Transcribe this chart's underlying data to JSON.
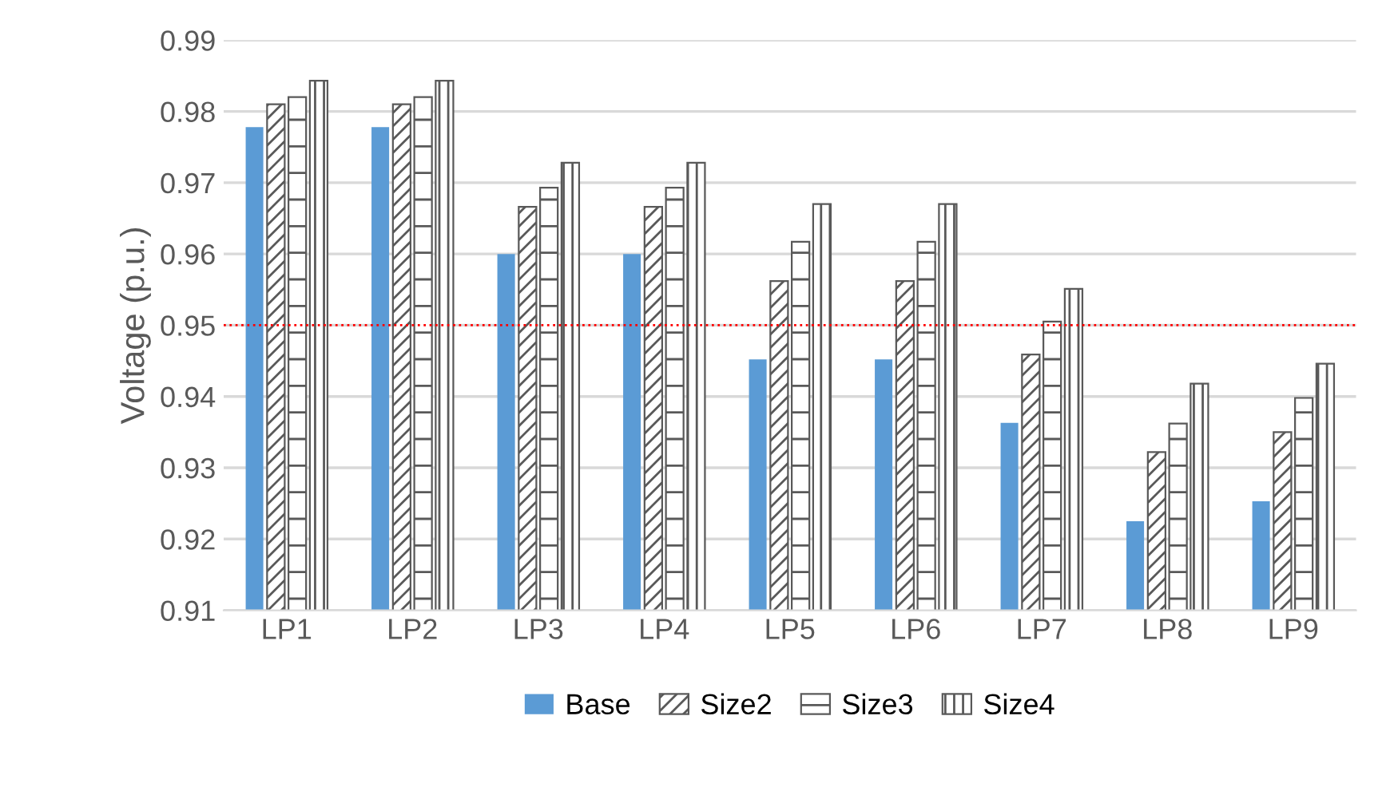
{
  "chart_data": {
    "type": "bar",
    "ylabel": "Voltage (p.u.)",
    "categories": [
      "LP1",
      "LP2",
      "LP3",
      "LP4",
      "LP5",
      "LP6",
      "LP7",
      "LP8",
      "LP9"
    ],
    "series": [
      {
        "name": "Base",
        "color": "#5b9bd5",
        "values": [
          0.9778,
          0.9778,
          0.96,
          0.96,
          0.9452,
          0.9452,
          0.9363,
          0.9225,
          0.9253
        ]
      },
      {
        "name": "Size2",
        "color": "#595959",
        "values": [
          0.981,
          0.981,
          0.9666,
          0.9666,
          0.9562,
          0.9562,
          0.9459,
          0.9322,
          0.935
        ]
      },
      {
        "name": "Size3",
        "color": "#595959",
        "values": [
          0.982,
          0.982,
          0.9693,
          0.9693,
          0.9617,
          0.9617,
          0.9505,
          0.9362,
          0.9398
        ]
      },
      {
        "name": "Size4",
        "color": "#595959",
        "values": [
          0.9843,
          0.9843,
          0.9728,
          0.9728,
          0.967,
          0.967,
          0.9551,
          0.9418,
          0.9446
        ]
      }
    ],
    "ylim": [
      0.91,
      0.99
    ],
    "yticks": [
      0.91,
      0.92,
      0.93,
      0.94,
      0.95,
      0.96,
      0.97,
      0.98,
      0.99
    ],
    "grid": "y",
    "legend": "bottom",
    "ref_lines": [
      {
        "axis": "y",
        "value": 0.95,
        "color": "#ff0000",
        "line_style": "dotted"
      }
    ]
  }
}
